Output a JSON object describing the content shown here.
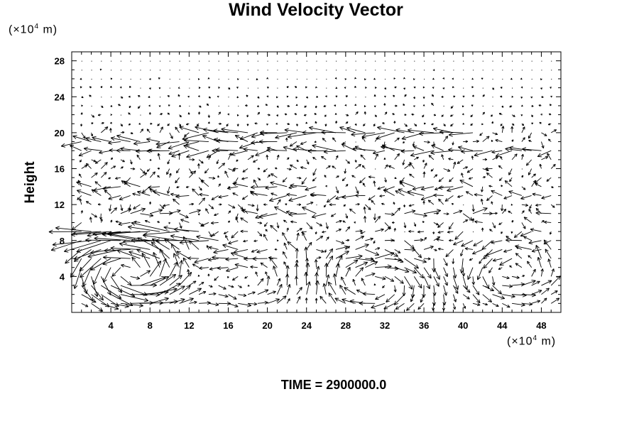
{
  "chart_data": {
    "type": "vector-field",
    "title": "Wind Velocity Vector",
    "ylabel": "Height",
    "xunit": {
      "prefix": "(×10",
      "exp": "4",
      "suffix": " m)"
    },
    "yunit": {
      "prefix": "(×10",
      "exp": "4",
      "suffix": " m)"
    },
    "xlim": [
      0,
      50
    ],
    "ylim": [
      0,
      29
    ],
    "xticks": [
      4,
      8,
      12,
      16,
      20,
      24,
      28,
      32,
      36,
      40,
      44,
      48
    ],
    "yticks": [
      4,
      8,
      12,
      16,
      20,
      24,
      28
    ],
    "grid_dx": 1.0,
    "grid_dy": 1.0,
    "time_label": "TIME = 2900000.0",
    "annotation_colors": {
      "line": "#000000",
      "background": "#ffffff"
    }
  }
}
